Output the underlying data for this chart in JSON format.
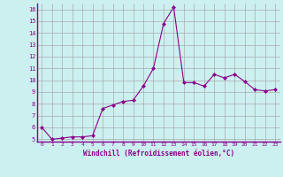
{
  "x": [
    0,
    1,
    2,
    3,
    4,
    5,
    6,
    7,
    8,
    9,
    10,
    11,
    12,
    13,
    14,
    15,
    16,
    17,
    18,
    19,
    20,
    21,
    22,
    23
  ],
  "y": [
    6.0,
    5.0,
    5.1,
    5.2,
    5.2,
    5.3,
    7.6,
    7.9,
    8.2,
    8.3,
    9.5,
    11.0,
    14.8,
    16.2,
    9.8,
    9.8,
    9.5,
    10.5,
    10.2,
    10.5,
    9.9,
    9.2,
    9.1,
    9.2
  ],
  "line_color": "#8B008B",
  "marker": "D",
  "marker_size": 2.0,
  "bg_color": "#ccf0f0",
  "grid_color": "#aaaaaa",
  "xlabel": "Windchill (Refroidissement éolien,°C)",
  "xlabel_color": "#8B008B",
  "tick_color": "#8B008B",
  "ylim": [
    4.8,
    16.5
  ],
  "xlim": [
    -0.5,
    23.5
  ],
  "yticks": [
    5,
    6,
    7,
    8,
    9,
    10,
    11,
    12,
    13,
    14,
    15,
    16
  ],
  "xticks": [
    0,
    1,
    2,
    3,
    4,
    5,
    6,
    7,
    8,
    9,
    10,
    11,
    12,
    13,
    14,
    15,
    16,
    17,
    18,
    19,
    20,
    21,
    22,
    23
  ]
}
